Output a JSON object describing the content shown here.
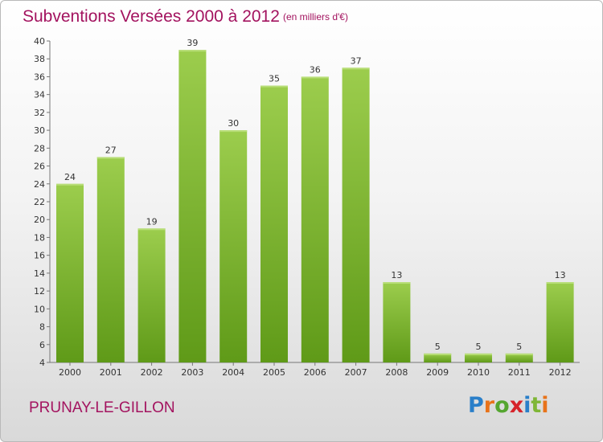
{
  "title": "Subventions Versées 2000 à 2012",
  "subtitle": "(en milliers d'€)",
  "commune": "PRUNAY-LE-GILLON",
  "logo": {
    "letters": [
      "P",
      "r",
      "o",
      "x",
      "i",
      "t",
      "i"
    ],
    "colors": [
      "#2a7fc9",
      "#e8731a",
      "#55a630",
      "#d6232a",
      "#2a7fc9",
      "#7fb636",
      "#e8731a"
    ]
  },
  "colors": {
    "accent": "#a3135f",
    "bar_top": "#9ccd4d",
    "bar_bottom": "#5f9a18"
  },
  "chart_data": {
    "type": "bar",
    "title": "Subventions Versées 2000 à 2012",
    "subtitle": "(en milliers d'€)",
    "categories": [
      "2000",
      "2001",
      "2002",
      "2003",
      "2004",
      "2005",
      "2006",
      "2007",
      "2008",
      "2009",
      "2010",
      "2011",
      "2012"
    ],
    "values": [
      24,
      27,
      19,
      39,
      30,
      35,
      36,
      37,
      13,
      5,
      5,
      5,
      13
    ],
    "ylim": [
      4,
      40
    ],
    "yticks": [
      "4",
      "6",
      "8",
      "10",
      "12",
      "14",
      "16",
      "18",
      "20",
      "22",
      "24",
      "26",
      "28",
      "30",
      "32",
      "34",
      "36",
      "38",
      "40"
    ],
    "grid": false,
    "legend": "none"
  }
}
